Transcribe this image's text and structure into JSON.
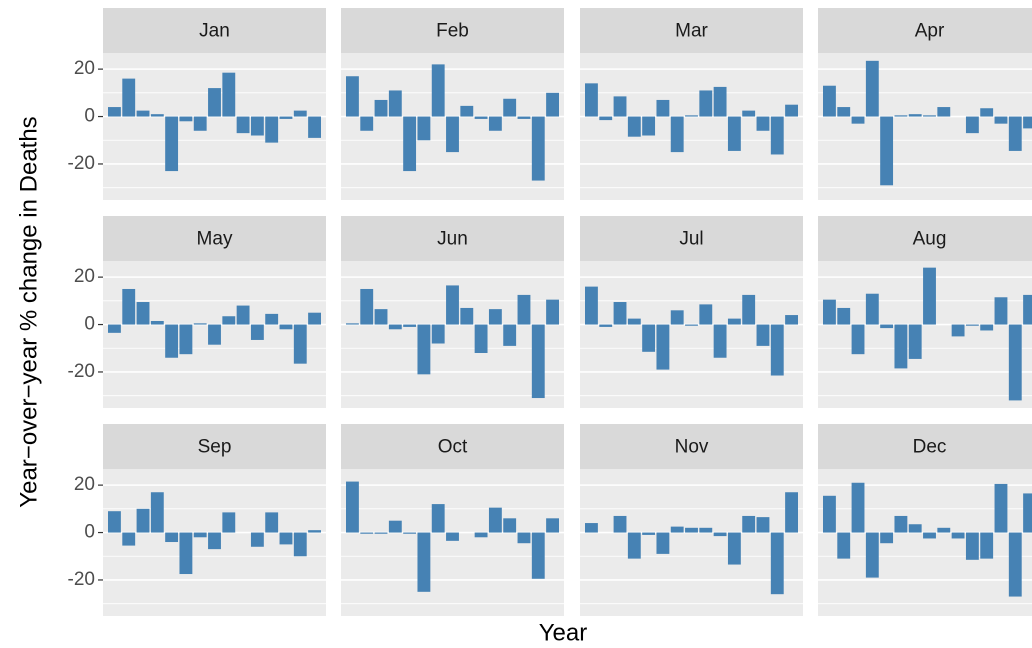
{
  "chart_data": {
    "type": "bar",
    "xlabel": "Year",
    "ylabel": "Year−over−year % change in Deaths",
    "color": "#4682b4",
    "ylim": [
      -35.2,
      26.8
    ],
    "yticks": [
      -20,
      0,
      20
    ],
    "minor_grid": [
      -30,
      -10,
      10
    ],
    "grid": true,
    "categories": [
      null,
      null,
      null,
      null,
      null,
      null,
      null,
      null,
      null,
      null,
      null,
      null,
      null,
      null,
      null
    ],
    "facets": [
      {
        "title": "Jan",
        "values": [
          4,
          16,
          2.5,
          1,
          -23,
          -2,
          -6,
          12,
          18.5,
          -7,
          -8,
          -11,
          -1,
          2.5,
          -9
        ]
      },
      {
        "title": "Feb",
        "values": [
          17,
          -6,
          7,
          11,
          -23,
          -10,
          22,
          -15,
          4.5,
          -1,
          -6,
          7.5,
          -1,
          -27,
          10
        ]
      },
      {
        "title": "Mar",
        "values": [
          14,
          -1.5,
          8.5,
          -8.5,
          -8,
          7,
          -15,
          0.5,
          11,
          12.5,
          -14.5,
          2.5,
          -6,
          -16,
          5
        ]
      },
      {
        "title": "Apr",
        "values": [
          13,
          4,
          -3,
          23.5,
          -29,
          0.5,
          1,
          0.5,
          4,
          0,
          -7,
          3.5,
          -3,
          -14.5,
          -5
        ]
      },
      {
        "title": "May",
        "values": [
          -3.5,
          15,
          9.5,
          1.5,
          -14,
          -12.5,
          0.5,
          -8.5,
          3.5,
          8,
          -6.5,
          4.5,
          -2,
          -16.5,
          5
        ]
      },
      {
        "title": "Jun",
        "values": [
          0.5,
          15,
          6.5,
          -2,
          -1,
          -21,
          -8,
          16.5,
          7,
          -12,
          6.5,
          -9,
          12.5,
          -31,
          10.5
        ]
      },
      {
        "title": "Jul",
        "values": [
          16,
          -1,
          9.5,
          2.5,
          -11.5,
          -19,
          6,
          -0.5,
          8.5,
          -14,
          2.5,
          12.5,
          -9,
          -21.5,
          4
        ]
      },
      {
        "title": "Aug",
        "values": [
          10.5,
          7,
          -12.5,
          13,
          -1.5,
          -18.5,
          -14.5,
          24,
          0,
          -5,
          -0.5,
          -2.5,
          11.5,
          -32,
          12.5
        ]
      },
      {
        "title": "Sep",
        "values": [
          9,
          -5.5,
          10,
          17,
          -4,
          -17.5,
          -2,
          -7,
          8.5,
          0,
          -6,
          8.5,
          -5,
          -10,
          1
        ]
      },
      {
        "title": "Oct",
        "values": [
          21.5,
          -0.5,
          -0.5,
          5,
          -0.5,
          -25,
          12,
          -3.5,
          0,
          -2,
          10.5,
          6,
          -4.5,
          -19.5,
          6
        ]
      },
      {
        "title": "Nov",
        "values": [
          4,
          0,
          7,
          -11,
          -1,
          -9,
          2.5,
          2,
          2,
          -1.5,
          -13.5,
          7,
          6.5,
          -26,
          17
        ]
      },
      {
        "title": "Dec",
        "values": [
          15.5,
          -11,
          21,
          -19,
          -4.5,
          7,
          3.5,
          -2.5,
          2,
          -2.5,
          -11.5,
          -11,
          20.5,
          -27,
          16.5
        ]
      }
    ]
  }
}
